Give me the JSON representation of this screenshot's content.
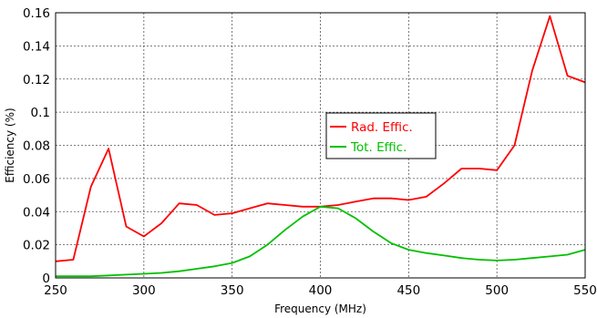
{
  "chart_data": {
    "type": "line",
    "xlabel": "Frequency (MHz)",
    "ylabel": "Efficiency (%)",
    "xlim": [
      250,
      550
    ],
    "ylim": [
      0,
      0.16
    ],
    "xticks": [
      250,
      300,
      350,
      400,
      450,
      500,
      550
    ],
    "xtick_labels": [
      "250",
      "300",
      "350",
      "400",
      "450",
      "500",
      "550"
    ],
    "yticks": [
      0,
      0.02,
      0.04,
      0.06,
      0.08,
      0.1,
      0.12,
      0.14,
      0.16
    ],
    "ytick_labels": [
      "0",
      "0.02",
      "0.04",
      "0.06",
      "0.08",
      "0.1",
      "0.12",
      "0.14",
      "0.16"
    ],
    "grid": true,
    "legend_position": "center",
    "x": [
      250,
      260,
      270,
      280,
      290,
      300,
      310,
      320,
      330,
      340,
      350,
      360,
      370,
      380,
      390,
      400,
      410,
      420,
      430,
      440,
      450,
      460,
      470,
      480,
      490,
      500,
      510,
      520,
      530,
      540,
      550
    ],
    "series": [
      {
        "name": "Rad. Effic.",
        "color": "#ff0000",
        "values": [
          0.01,
          0.011,
          0.055,
          0.078,
          0.031,
          0.025,
          0.033,
          0.045,
          0.044,
          0.038,
          0.039,
          0.042,
          0.045,
          0.044,
          0.043,
          0.043,
          0.044,
          0.046,
          0.048,
          0.048,
          0.047,
          0.049,
          0.057,
          0.066,
          0.066,
          0.065,
          0.08,
          0.125,
          0.158,
          0.122,
          0.118
        ]
      },
      {
        "name": "Tot. Effic.",
        "color": "#00c000",
        "values": [
          0.001,
          0.001,
          0.001,
          0.0015,
          0.002,
          0.0025,
          0.003,
          0.004,
          0.0055,
          0.007,
          0.009,
          0.013,
          0.02,
          0.029,
          0.037,
          0.043,
          0.042,
          0.036,
          0.028,
          0.021,
          0.017,
          0.015,
          0.0135,
          0.012,
          0.011,
          0.0105,
          0.011,
          0.012,
          0.013,
          0.014,
          0.017
        ]
      }
    ]
  }
}
